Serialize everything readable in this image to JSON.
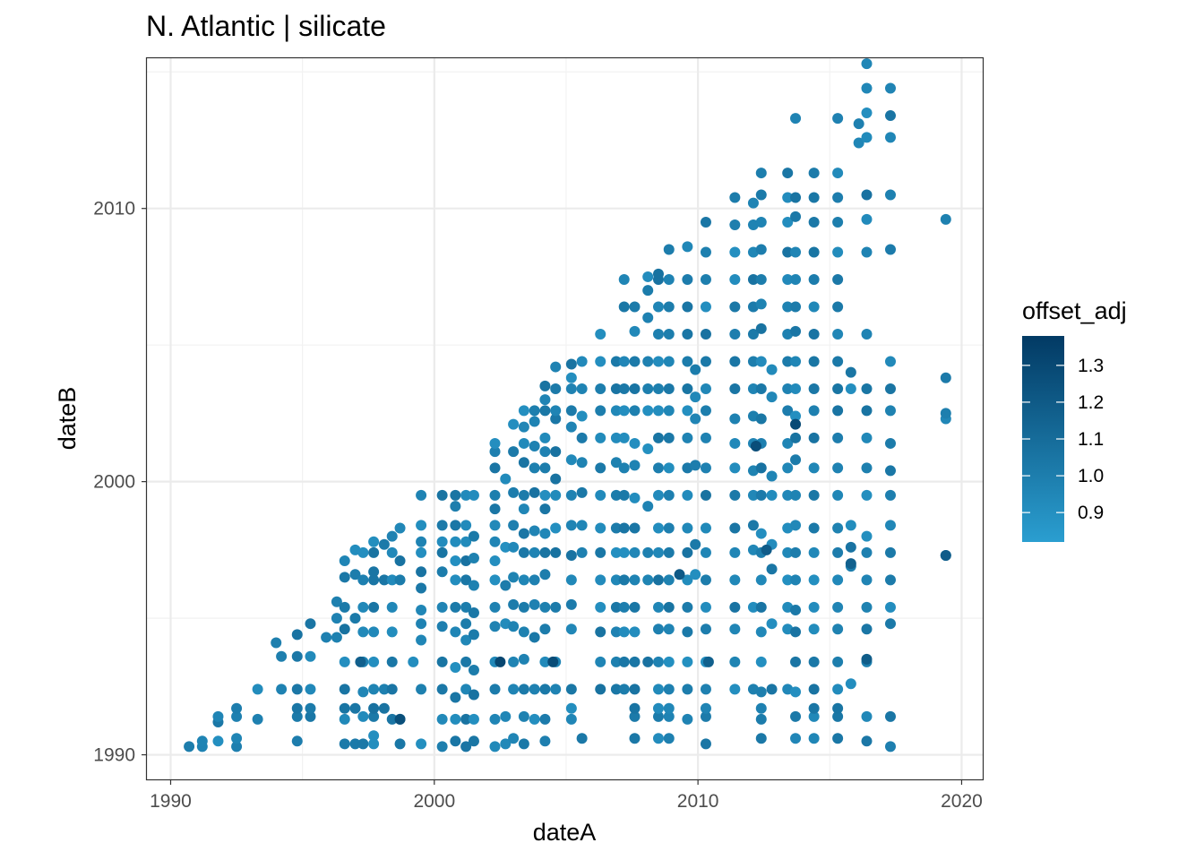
{
  "chart_data": {
    "type": "scatter",
    "title": "N. Atlantic | silicate",
    "xlabel": "dateA",
    "ylabel": "dateB",
    "xlim": [
      1989.1,
      2020.8
    ],
    "ylim": [
      1989.1,
      2015.5
    ],
    "x_ticks": [
      1990,
      2000,
      2010,
      2020
    ],
    "y_ticks": [
      1990,
      2000,
      2010
    ],
    "x_tick_labels": [
      "1990",
      "2000",
      "2010",
      "2020"
    ],
    "y_tick_labels": [
      "1990",
      "2000",
      "2010"
    ],
    "grid": true,
    "color": {
      "variable": "offset_adj",
      "range": [
        0.82,
        1.38
      ],
      "low": "#2a9ed0",
      "high": "#023a64",
      "ticks": [
        0.9,
        1.0,
        1.1,
        1.2,
        1.3
      ],
      "tick_labels": [
        "0.9",
        "1.0",
        "1.1",
        "1.2",
        "1.3"
      ]
    },
    "legend": {
      "title": "offset_adj",
      "position": "right"
    },
    "columns": [
      {
        "x": 1990.7,
        "y": [
          1990.3
        ]
      },
      {
        "x": 1991.2,
        "y": [
          1990.3,
          1990.5
        ]
      },
      {
        "x": 1991.8,
        "y": [
          1990.5,
          1991.2,
          1991.4
        ]
      },
      {
        "x": 1992.5,
        "y": [
          1990.3,
          1990.6,
          1991.4,
          1991.7
        ]
      },
      {
        "x": 1993.3,
        "y": [
          1991.3,
          1992.4
        ]
      },
      {
        "x": 1994.0,
        "y": [
          1994.1
        ]
      },
      {
        "x": 1994.2,
        "y": [
          1992.4,
          1993.6
        ]
      },
      {
        "x": 1994.8,
        "y": [
          1990.5,
          1991.4,
          1991.7,
          1992.4,
          1993.6,
          1994.4
        ]
      },
      {
        "x": 1995.3,
        "y": [
          1991.4,
          1991.7,
          1992.4,
          1993.6,
          1994.8
        ]
      },
      {
        "x": 1995.9,
        "y": [
          1994.3
        ]
      },
      {
        "x": 1996.3,
        "y": [
          1994.3,
          1995.0,
          1995.6
        ]
      },
      {
        "x": 1996.6,
        "y": [
          1990.4,
          1991.3,
          1991.7,
          1992.4,
          1993.4,
          1994.6,
          1995.4,
          1996.5,
          1997.1
        ]
      },
      {
        "x": 1997.0,
        "y": [
          1990.4,
          1991.7,
          1995.0,
          1996.6,
          1997.5
        ]
      },
      {
        "x": 1997.3,
        "y": [
          1990.4,
          1991.4,
          1992.3,
          1993.4,
          1994.5,
          1995.4,
          1996.4,
          1997.4
        ]
      },
      {
        "x": 1997.7,
        "y": [
          1990.4,
          1990.7,
          1991.4,
          1991.7,
          1992.4,
          1993.4,
          1994.5,
          1995.4,
          1996.4,
          1996.7,
          1997.4,
          1997.8
        ]
      },
      {
        "x": 1998.1,
        "y": [
          1991.7,
          1992.4,
          1996.4,
          1997.7
        ]
      },
      {
        "x": 1998.4,
        "y": [
          1991.3,
          1992.4,
          1993.4,
          1994.5,
          1995.4,
          1996.4,
          1997.4,
          1998.0
        ]
      },
      {
        "x": 1998.7,
        "y": [
          1990.4,
          1991.3,
          1996.4,
          1997.1,
          1998.3
        ]
      },
      {
        "x": 1999.2,
        "y": [
          1993.4
        ]
      },
      {
        "x": 1999.5,
        "y": [
          1990.4,
          1992.4,
          1994.2,
          1994.8,
          1995.3,
          1996.1,
          1996.7,
          1997.4,
          1997.8,
          1998.4,
          1999.5
        ]
      },
      {
        "x": 2000.3,
        "y": [
          1990.3,
          1991.3,
          1992.4,
          1993.4,
          1994.7,
          1995.4,
          1996.7,
          1997.4,
          1997.8,
          1998.4,
          1999.5
        ]
      },
      {
        "x": 2000.8,
        "y": [
          1990.5,
          1991.3,
          1992.1,
          1993.2,
          1994.5,
          1995.4,
          1996.4,
          1997.1,
          1997.8,
          1998.4,
          1999.1,
          1999.5
        ]
      },
      {
        "x": 2001.2,
        "y": [
          1990.3,
          1991.3,
          1992.4,
          1993.4,
          1994.2,
          1994.8,
          1995.4,
          1996.4,
          1997.1,
          1997.8,
          1998.4,
          1999.5
        ]
      },
      {
        "x": 2001.5,
        "y": [
          1990.5,
          1991.3,
          1992.2,
          1993.1,
          1994.4,
          1995.2,
          1996.2,
          1997.2,
          1998.0,
          1999.5
        ]
      },
      {
        "x": 2002.3,
        "y": [
          1990.3,
          1991.3,
          1992.4,
          1993.4,
          1994.7,
          1995.4,
          1996.4,
          1997.1,
          1997.8,
          1998.4,
          1999.0,
          1999.5,
          2000.5,
          2001.1,
          2001.4
        ]
      },
      {
        "x": 2002.7,
        "y": [
          1990.4,
          1991.4,
          1994.8,
          1996.2,
          1997.6,
          2000.1
        ]
      },
      {
        "x": 2003.0,
        "y": [
          1990.6,
          1992.4,
          1993.4,
          1994.7,
          1995.5,
          1996.5,
          1997.6,
          1998.4,
          1999.6,
          2001.1,
          2002.1
        ]
      },
      {
        "x": 2003.4,
        "y": [
          1990.4,
          1991.4,
          1992.4,
          1993.5,
          1994.5,
          1995.4,
          1996.4,
          1997.4,
          1998.1,
          1999.0,
          1999.5,
          2000.7,
          2001.4,
          2002.0,
          2002.6
        ]
      },
      {
        "x": 2003.8,
        "y": [
          1991.3,
          1992.4,
          1994.3,
          1995.5,
          1996.4,
          1997.4,
          1998.2,
          1999.6,
          2000.5,
          2001.3,
          2002.2,
          2002.6
        ]
      },
      {
        "x": 2004.2,
        "y": [
          1990.5,
          1991.3,
          1992.4,
          1993.4,
          1994.6,
          1995.4,
          1996.6,
          1997.4,
          1998.1,
          1999.0,
          1999.5,
          2000.5,
          2001.1,
          2001.6,
          2002.6,
          2003.0,
          2003.5
        ]
      },
      {
        "x": 2004.6,
        "y": [
          1992.4,
          1993.4,
          1995.4,
          1997.4,
          1998.3,
          1999.5,
          2000.1,
          2001.1,
          2002.3,
          2002.6,
          2003.4,
          2004.2
        ]
      },
      {
        "x": 2005.2,
        "y": [
          1991.3,
          1991.7,
          1992.4,
          1994.6,
          1995.5,
          1996.4,
          1997.3,
          1998.4,
          1999.5,
          2000.8,
          2002.0,
          2002.6,
          2003.4,
          2003.8,
          2004.3
        ]
      },
      {
        "x": 2005.6,
        "y": [
          1990.6,
          1997.4,
          1998.4,
          1999.6,
          2000.7,
          2001.6,
          2002.4,
          2003.4,
          2004.4
        ]
      },
      {
        "x": 2006.3,
        "y": [
          1992.4,
          1993.4,
          1994.5,
          1995.4,
          1996.4,
          1997.4,
          1998.3,
          1999.5,
          2000.5,
          2001.6,
          2002.6,
          2003.4,
          2004.4,
          2005.4
        ]
      },
      {
        "x": 2006.9,
        "y": [
          1992.4,
          1993.4,
          1994.5,
          1995.4,
          1996.4,
          1997.4,
          1998.3,
          1999.5,
          2000.7,
          2001.6,
          2002.6,
          2003.4,
          2004.4
        ]
      },
      {
        "x": 2007.2,
        "y": [
          1992.4,
          1993.4,
          1994.5,
          1995.4,
          1996.4,
          1997.4,
          1998.3,
          1999.5,
          2000.5,
          2001.6,
          2002.6,
          2003.4,
          2004.4,
          2006.4,
          2007.4
        ]
      },
      {
        "x": 2007.6,
        "y": [
          1990.6,
          1991.4,
          1991.7,
          1992.4,
          1993.4,
          1994.5,
          1995.4,
          1996.4,
          1997.4,
          1998.3,
          1999.4,
          2000.6,
          2001.4,
          2002.6,
          2003.4,
          2004.4,
          2005.5,
          2006.4
        ]
      },
      {
        "x": 2008.1,
        "y": [
          1993.4,
          1996.4,
          1997.4,
          1999.1,
          2001.2,
          2002.6,
          2003.4,
          2004.4,
          2006.0,
          2007.0,
          2007.5
        ]
      },
      {
        "x": 2008.5,
        "y": [
          1990.6,
          1991.4,
          1991.7,
          1992.4,
          1993.4,
          1994.6,
          1995.4,
          1996.4,
          1997.4,
          1998.3,
          1999.5,
          2000.5,
          2001.6,
          2002.6,
          2003.4,
          2004.4,
          2005.4,
          2006.4,
          2007.4,
          2007.6
        ]
      },
      {
        "x": 2008.9,
        "y": [
          1990.6,
          1991.4,
          1991.7,
          1992.4,
          1993.4,
          1994.6,
          1995.4,
          1996.4,
          1997.4,
          1998.3,
          1999.5,
          2000.5,
          2001.6,
          2002.6,
          2003.4,
          2004.4,
          2005.4,
          2006.4,
          2007.4,
          2008.5
        ]
      },
      {
        "x": 2009.6,
        "y": [
          1991.3,
          1992.4,
          1993.4,
          1994.5,
          1995.4,
          1996.4,
          1997.4,
          1998.3,
          1999.5,
          2000.5,
          2001.6,
          2002.6,
          2003.4,
          2004.4,
          2005.4,
          2006.4,
          2007.4,
          2008.6
        ]
      },
      {
        "x": 2009.9,
        "y": [
          1996.6,
          1997.7,
          2000.6,
          2002.3,
          2003.1,
          2004.1
        ]
      },
      {
        "x": 2010.3,
        "y": [
          1990.4,
          1991.4,
          1991.7,
          1992.4,
          1993.4,
          1994.6,
          1995.4,
          1996.4,
          1997.4,
          1998.3,
          1999.5,
          2000.5,
          2001.6,
          2002.6,
          2003.4,
          2004.4,
          2005.4,
          2006.4,
          2007.4,
          2008.4,
          2009.5
        ]
      },
      {
        "x": 2011.4,
        "y": [
          1992.4,
          1993.4,
          1994.6,
          1995.4,
          1996.4,
          1997.4,
          1998.3,
          1999.5,
          2000.5,
          2001.4,
          2002.3,
          2003.4,
          2004.4,
          2005.4,
          2006.4,
          2007.4,
          2008.4,
          2009.4,
          2010.4
        ]
      },
      {
        "x": 2012.1,
        "y": [
          1992.4,
          1995.4,
          1997.5,
          1998.4,
          1999.5,
          2000.4,
          2001.4,
          2002.4,
          2003.4,
          2004.4,
          2005.4,
          2006.4,
          2007.4,
          2008.4,
          2009.4,
          2010.2
        ]
      },
      {
        "x": 2012.4,
        "y": [
          1990.6,
          1991.3,
          1991.7,
          1992.3,
          1993.4,
          1994.5,
          1995.4,
          1996.4,
          1997.4,
          1998.1,
          1999.5,
          2000.5,
          2001.4,
          2002.3,
          2003.4,
          2004.4,
          2005.6,
          2006.5,
          2007.4,
          2008.5,
          2009.5,
          2010.5,
          2011.3
        ]
      },
      {
        "x": 2012.8,
        "y": [
          1992.4,
          1994.8,
          1996.8,
          1997.7,
          1999.5,
          2000.2,
          2003.1,
          2004.1
        ]
      },
      {
        "x": 2013.4,
        "y": [
          1992.4,
          1994.6,
          1995.4,
          1996.4,
          1997.4,
          1998.3,
          1999.5,
          2000.5,
          2001.4,
          2002.6,
          2003.4,
          2004.4,
          2005.4,
          2006.4,
          2007.4,
          2008.4,
          2009.5,
          2010.4,
          2011.3
        ]
      },
      {
        "x": 2013.7,
        "y": [
          1990.6,
          1991.4,
          1992.3,
          1993.4,
          1994.5,
          1995.3,
          1996.4,
          1997.4,
          1998.4,
          1999.5,
          2000.8,
          2001.6,
          2002.4,
          2003.4,
          2004.4,
          2005.5,
          2006.4,
          2007.4,
          2008.4,
          2009.7,
          2010.4,
          2013.3
        ]
      },
      {
        "x": 2014.4,
        "y": [
          1990.6,
          1991.4,
          1991.7,
          1992.4,
          1993.4,
          1994.6,
          1995.4,
          1996.4,
          1997.4,
          1998.3,
          1999.5,
          2000.5,
          2001.6,
          2002.6,
          2003.4,
          2004.4,
          2005.4,
          2006.4,
          2007.4,
          2008.4,
          2009.5,
          2010.4,
          2011.3
        ]
      },
      {
        "x": 2015.3,
        "y": [
          1990.6,
          1991.4,
          1991.7,
          1992.4,
          1993.4,
          1994.6,
          1995.4,
          1996.4,
          1997.4,
          1998.3,
          1999.5,
          2000.5,
          2001.6,
          2002.6,
          2003.4,
          2004.4,
          2005.4,
          2006.4,
          2007.4,
          2008.4,
          2009.5,
          2010.4,
          2011.3,
          2013.3
        ]
      },
      {
        "x": 2015.8,
        "y": [
          1992.6,
          1996.9,
          1997.6,
          1998.4,
          2003.4,
          2004.0
        ]
      },
      {
        "x": 2016.1,
        "y": [
          2012.4,
          2013.1
        ]
      },
      {
        "x": 2016.4,
        "y": [
          1990.5,
          1991.4,
          1993.4,
          1994.6,
          1995.4,
          1996.4,
          1997.4,
          1998.0,
          1999.5,
          2000.5,
          2001.6,
          2002.6,
          2003.4,
          2005.4,
          2008.4,
          2009.6,
          2010.5,
          2012.6,
          2013.5,
          2014.4,
          2015.3
        ]
      },
      {
        "x": 2017.3,
        "y": [
          1990.3,
          1991.4,
          1994.8,
          1995.4,
          1996.4,
          1997.4,
          1998.4,
          1999.5,
          2000.4,
          2001.4,
          2002.6,
          2003.4,
          2004.4,
          2008.5,
          2010.5,
          2012.6,
          2013.4,
          2014.4
        ]
      },
      {
        "x": 2019.4,
        "y": [
          1997.3,
          2002.3,
          2002.5,
          2003.8,
          2009.6
        ]
      }
    ],
    "dark_points": [
      {
        "x": 1998.7,
        "y": 1991.3
      },
      {
        "x": 2002.5,
        "y": 1993.4
      },
      {
        "x": 2004.5,
        "y": 1993.4
      },
      {
        "x": 2009.3,
        "y": 1996.6
      },
      {
        "x": 2010.4,
        "y": 1993.4
      },
      {
        "x": 2012.6,
        "y": 1997.5
      },
      {
        "x": 2013.7,
        "y": 2002.1
      },
      {
        "x": 2016.4,
        "y": 1993.5
      },
      {
        "x": 2015.8,
        "y": 1997.0
      },
      {
        "x": 2019.4,
        "y": 1997.3
      },
      {
        "x": 1997.2,
        "y": 1993.4
      },
      {
        "x": 2012.2,
        "y": 2001.3
      }
    ]
  }
}
